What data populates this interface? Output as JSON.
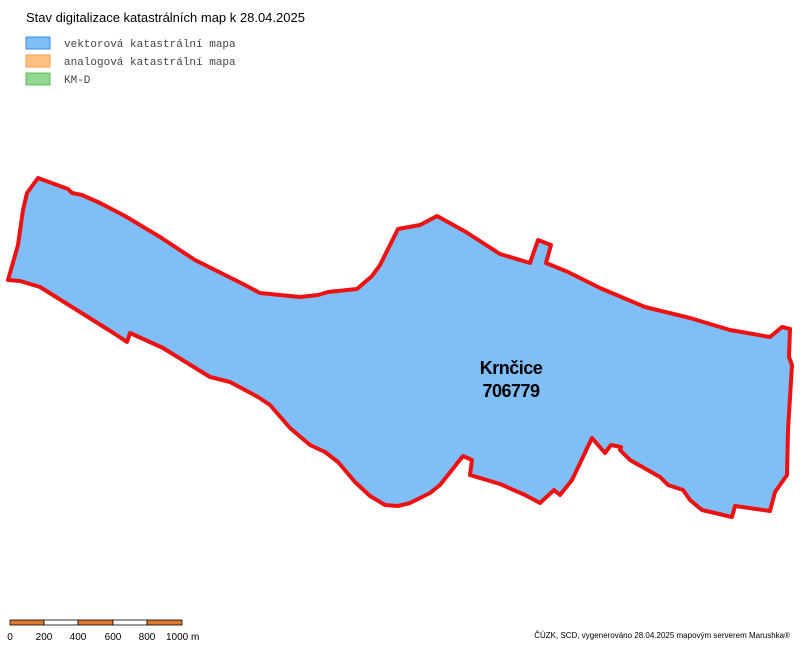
{
  "title": "Stav digitalizace katastrálních map k 28.04.2025",
  "legend": [
    "vektorová katastrální mapa",
    "analogová katastrální mapa",
    "KM-D"
  ],
  "area": {
    "name": "Krnčice",
    "code": "706779"
  },
  "scale_bar": [
    "0",
    "200",
    "400",
    "600",
    "800",
    "1000 m"
  ],
  "credit": "ČÚZK, SCD, vygenerováno 28.04.2025 mapovým serverem Marushka®"
}
